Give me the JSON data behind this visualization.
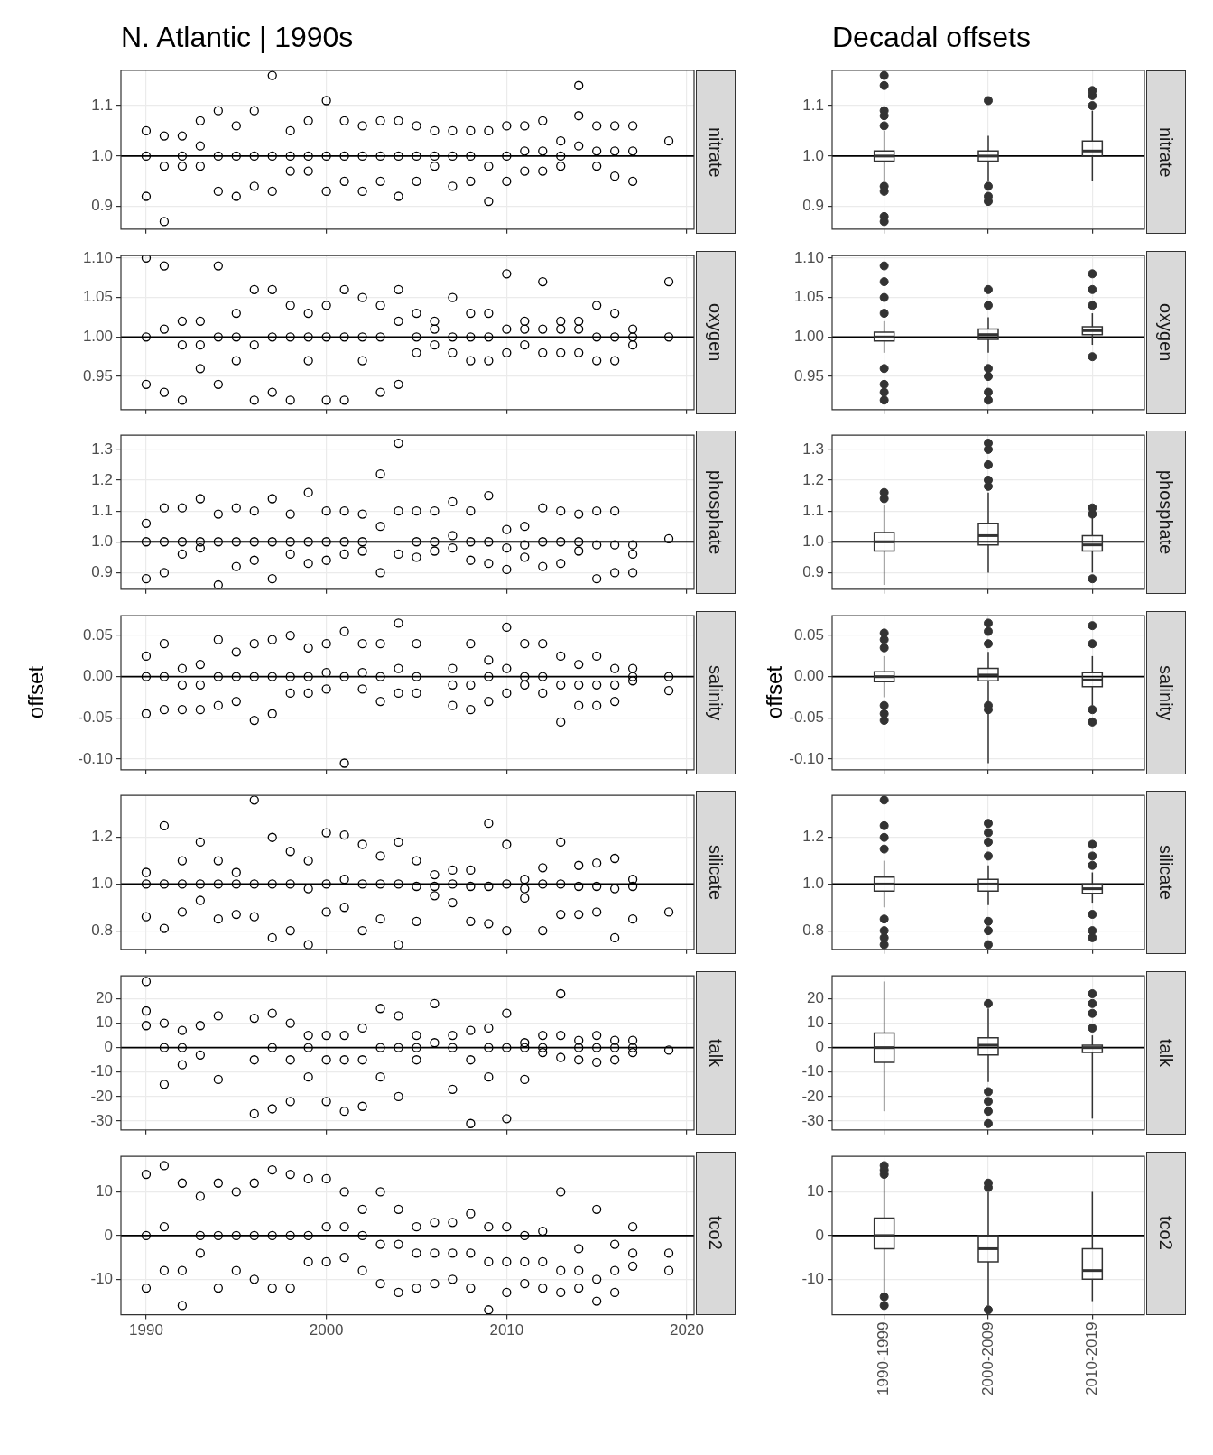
{
  "chart_data": [
    {
      "type": "scatter",
      "title": "N. Atlantic | 1990s",
      "y2label": "nitrate",
      "color": "#000000",
      "marker": "circle",
      "grid": true,
      "tick_labels": "y",
      "xlim": [
        1988.6,
        2020.4
      ],
      "xticks": [
        1990,
        2000,
        2010,
        2020
      ],
      "ylim": [
        0.855,
        1.17
      ],
      "yticks": [
        {
          "value": 0.9,
          "label": "0.9"
        },
        {
          "value": 1,
          "label": "1.0"
        },
        {
          "value": 1.1,
          "label": "1.1"
        }
      ],
      "ref_lines": [
        {
          "axis": "y",
          "value": 1
        }
      ],
      "x": [
        1990,
        1990,
        1990,
        1991,
        1991,
        1991,
        1992,
        1992,
        1992,
        1993,
        1993,
        1993,
        1994,
        1994,
        1994,
        1995,
        1995,
        1995,
        1996,
        1996,
        1996,
        1997,
        1997,
        1997,
        1998,
        1998,
        1998,
        1999,
        1999,
        1999,
        2000,
        2000,
        2000,
        2001,
        2001,
        2001,
        2002,
        2002,
        2002,
        2003,
        2003,
        2003,
        2004,
        2004,
        2004,
        2005,
        2005,
        2005,
        2006,
        2006,
        2006,
        2007,
        2007,
        2007,
        2008,
        2008,
        2008,
        2009,
        2009,
        2009,
        2010,
        2010,
        2010,
        2011,
        2011,
        2011,
        2012,
        2012,
        2012,
        2013,
        2013,
        2013,
        2014,
        2014,
        2014,
        2015,
        2015,
        2015,
        2016,
        2016,
        2016,
        2017,
        2017,
        2017,
        2019
      ],
      "values": [
        0.92,
        1.0,
        1.05,
        0.87,
        0.98,
        1.04,
        0.98,
        1.0,
        1.04,
        0.98,
        1.02,
        1.07,
        0.93,
        1.0,
        1.09,
        0.92,
        1.0,
        1.06,
        0.94,
        1.0,
        1.09,
        0.93,
        1.0,
        1.16,
        0.97,
        1.0,
        1.05,
        0.97,
        1.0,
        1.07,
        0.93,
        1.0,
        1.11,
        0.95,
        1.0,
        1.07,
        0.93,
        1.0,
        1.06,
        0.95,
        1.0,
        1.07,
        0.92,
        1.0,
        1.07,
        0.95,
        1.0,
        1.06,
        0.98,
        1.0,
        1.05,
        0.94,
        1.0,
        1.05,
        0.95,
        1.0,
        1.05,
        0.91,
        0.98,
        1.05,
        0.95,
        1.0,
        1.06,
        0.97,
        1.01,
        1.06,
        0.97,
        1.01,
        1.07,
        0.98,
        1.0,
        1.03,
        1.02,
        1.08,
        1.14,
        0.98,
        1.01,
        1.06,
        0.96,
        1.01,
        1.06,
        0.95,
        1.01,
        1.06,
        1.03
      ]
    },
    {
      "type": "box",
      "title": "Decadal offsets",
      "y2label": "nitrate",
      "color": "#333333",
      "grid": true,
      "tick_labels": "y",
      "ylim": [
        0.855,
        1.17
      ],
      "yticks": [
        {
          "value": 0.9,
          "label": "0.9"
        },
        {
          "value": 1,
          "label": "1.0"
        },
        {
          "value": 1.1,
          "label": "1.1"
        }
      ],
      "ref_lines": [
        {
          "axis": "y",
          "value": 1
        }
      ],
      "boxes": [
        {
          "low": 0.95,
          "q1": 0.99,
          "median": 1.0,
          "q3": 1.01,
          "high": 1.05,
          "outliers": [
            0.87,
            0.88,
            0.93,
            0.94,
            1.06,
            1.08,
            1.09,
            1.14,
            1.16
          ]
        },
        {
          "low": 0.95,
          "q1": 0.99,
          "median": 1.0,
          "q3": 1.01,
          "high": 1.04,
          "outliers": [
            0.91,
            0.92,
            0.94,
            1.11
          ]
        },
        {
          "low": 0.95,
          "q1": 1.0,
          "median": 1.01,
          "q3": 1.03,
          "high": 1.09,
          "outliers": [
            1.1,
            1.12,
            1.13
          ]
        }
      ]
    },
    {
      "type": "scatter",
      "y2label": "oxygen",
      "color": "#000000",
      "marker": "circle",
      "grid": true,
      "tick_labels": "y",
      "xlim": [
        1988.6,
        2020.4
      ],
      "xticks": [
        1990,
        2000,
        2010,
        2020
      ],
      "ylim": [
        0.908,
        1.103
      ],
      "yticks": [
        0.95,
        {
          "value": 1,
          "label": "1.00"
        },
        1.05,
        {
          "value": 1.1,
          "label": "1.10"
        }
      ],
      "ref_lines": [
        {
          "axis": "y",
          "value": 1
        }
      ],
      "x": [
        1990,
        1990,
        1990,
        1991,
        1991,
        1991,
        1992,
        1992,
        1992,
        1993,
        1993,
        1993,
        1994,
        1994,
        1994,
        1995,
        1995,
        1995,
        1996,
        1996,
        1996,
        1997,
        1997,
        1997,
        1998,
        1998,
        1998,
        1999,
        1999,
        1999,
        2000,
        2000,
        2000,
        2001,
        2001,
        2001,
        2002,
        2002,
        2002,
        2003,
        2003,
        2003,
        2004,
        2004,
        2004,
        2005,
        2005,
        2005,
        2006,
        2006,
        2006,
        2007,
        2007,
        2007,
        2008,
        2008,
        2008,
        2009,
        2009,
        2009,
        2010,
        2010,
        2010,
        2011,
        2011,
        2011,
        2012,
        2012,
        2012,
        2013,
        2013,
        2013,
        2014,
        2014,
        2014,
        2015,
        2015,
        2015,
        2016,
        2016,
        2016,
        2017,
        2017,
        2017,
        2019,
        2019
      ],
      "values": [
        0.94,
        1.0,
        1.1,
        0.93,
        1.01,
        1.09,
        0.92,
        0.99,
        1.02,
        0.96,
        0.99,
        1.02,
        0.94,
        1.0,
        1.09,
        0.97,
        1.0,
        1.03,
        0.92,
        0.99,
        1.06,
        0.93,
        1.0,
        1.06,
        0.92,
        1.0,
        1.04,
        0.97,
        1.0,
        1.03,
        0.92,
        1.0,
        1.04,
        0.92,
        1.0,
        1.06,
        0.97,
        1.0,
        1.05,
        0.93,
        1.0,
        1.04,
        0.94,
        1.02,
        1.06,
        0.98,
        1.0,
        1.03,
        0.99,
        1.01,
        1.02,
        0.98,
        1.0,
        1.05,
        0.97,
        1.0,
        1.03,
        0.97,
        1.0,
        1.03,
        0.98,
        1.01,
        1.08,
        0.99,
        1.01,
        1.02,
        0.98,
        1.01,
        1.07,
        0.98,
        1.01,
        1.02,
        0.98,
        1.01,
        1.02,
        0.97,
        1.0,
        1.04,
        0.97,
        1.0,
        1.03,
        0.99,
        1.0,
        1.01,
        1.0,
        1.07
      ]
    },
    {
      "type": "box",
      "y2label": "oxygen",
      "color": "#333333",
      "grid": true,
      "tick_labels": "y",
      "ylim": [
        0.908,
        1.103
      ],
      "yticks": [
        0.95,
        {
          "value": 1,
          "label": "1.00"
        },
        1.05,
        {
          "value": 1.1,
          "label": "1.10"
        }
      ],
      "ref_lines": [
        {
          "axis": "y",
          "value": 1
        }
      ],
      "boxes": [
        {
          "low": 0.98,
          "q1": 0.995,
          "median": 1.0,
          "q3": 1.006,
          "high": 1.02,
          "outliers": [
            0.92,
            0.93,
            0.94,
            0.96,
            1.03,
            1.05,
            1.07,
            1.09
          ]
        },
        {
          "low": 0.98,
          "q1": 0.997,
          "median": 1.003,
          "q3": 1.01,
          "high": 1.025,
          "outliers": [
            0.92,
            0.93,
            0.95,
            0.96,
            1.04,
            1.06
          ]
        },
        {
          "low": 0.99,
          "q1": 1.003,
          "median": 1.008,
          "q3": 1.013,
          "high": 1.03,
          "outliers": [
            0.975,
            1.04,
            1.06,
            1.08
          ]
        }
      ]
    },
    {
      "type": "scatter",
      "y2label": "phosphate",
      "color": "#000000",
      "marker": "circle",
      "grid": true,
      "tick_labels": "y",
      "xlim": [
        1988.6,
        2020.4
      ],
      "xticks": [
        1990,
        2000,
        2010,
        2020
      ],
      "ylim": [
        0.846,
        1.346
      ],
      "yticks": [
        0.9,
        {
          "value": 1,
          "label": "1.0"
        },
        1.1,
        1.2,
        1.3
      ],
      "ref_lines": [
        {
          "axis": "y",
          "value": 1
        }
      ],
      "x": [
        1990,
        1990,
        1990,
        1991,
        1991,
        1991,
        1992,
        1992,
        1992,
        1993,
        1993,
        1993,
        1994,
        1994,
        1994,
        1995,
        1995,
        1995,
        1996,
        1996,
        1996,
        1997,
        1997,
        1997,
        1998,
        1998,
        1998,
        1999,
        1999,
        1999,
        2000,
        2000,
        2000,
        2001,
        2001,
        2001,
        2002,
        2002,
        2002,
        2003,
        2003,
        2003,
        2004,
        2004,
        2004,
        2005,
        2005,
        2005,
        2006,
        2006,
        2006,
        2007,
        2007,
        2007,
        2008,
        2008,
        2008,
        2009,
        2009,
        2009,
        2010,
        2010,
        2010,
        2011,
        2011,
        2011,
        2012,
        2012,
        2012,
        2013,
        2013,
        2013,
        2014,
        2014,
        2014,
        2015,
        2015,
        2015,
        2016,
        2016,
        2016,
        2017,
        2017,
        2017,
        2019
      ],
      "values": [
        0.88,
        1.0,
        1.06,
        0.9,
        1.0,
        1.11,
        0.96,
        1.0,
        1.11,
        0.98,
        1.0,
        1.14,
        0.86,
        1.0,
        1.09,
        0.92,
        1.0,
        1.11,
        0.94,
        1.0,
        1.1,
        0.88,
        1.0,
        1.14,
        0.96,
        1.0,
        1.09,
        0.93,
        1.0,
        1.16,
        0.94,
        1.0,
        1.1,
        0.96,
        1.0,
        1.1,
        0.97,
        1.0,
        1.09,
        0.9,
        1.05,
        1.22,
        0.96,
        1.1,
        1.32,
        0.95,
        1.0,
        1.1,
        0.97,
        1.0,
        1.1,
        0.98,
        1.02,
        1.13,
        0.94,
        1.0,
        1.1,
        0.93,
        1.0,
        1.15,
        0.91,
        0.98,
        1.04,
        0.95,
        0.99,
        1.05,
        0.92,
        1.0,
        1.11,
        0.93,
        1.0,
        1.1,
        0.97,
        1.0,
        1.09,
        0.88,
        0.99,
        1.1,
        0.9,
        0.99,
        1.1,
        0.9,
        0.96,
        0.99,
        1.01
      ]
    },
    {
      "type": "box",
      "y2label": "phosphate",
      "color": "#333333",
      "grid": true,
      "tick_labels": "y",
      "ylim": [
        0.846,
        1.346
      ],
      "yticks": [
        0.9,
        {
          "value": 1,
          "label": "1.0"
        },
        1.1,
        1.2,
        1.3
      ],
      "ref_lines": [
        {
          "axis": "y",
          "value": 1
        }
      ],
      "boxes": [
        {
          "low": 0.86,
          "q1": 0.97,
          "median": 1.0,
          "q3": 1.03,
          "high": 1.12,
          "outliers": [
            1.14,
            1.16
          ]
        },
        {
          "low": 0.9,
          "q1": 0.99,
          "median": 1.02,
          "q3": 1.06,
          "high": 1.16,
          "outliers": [
            1.18,
            1.2,
            1.25,
            1.3,
            1.32
          ]
        },
        {
          "low": 0.9,
          "q1": 0.97,
          "median": 0.99,
          "q3": 1.02,
          "high": 1.08,
          "outliers": [
            0.88,
            1.09,
            1.11
          ]
        }
      ]
    },
    {
      "type": "scatter",
      "y2label": "salinity",
      "ylabel": "offset",
      "color": "#000000",
      "marker": "circle",
      "grid": true,
      "tick_labels": "y",
      "xlim": [
        1988.6,
        2020.4
      ],
      "xticks": [
        1990,
        2000,
        2010,
        2020
      ],
      "ylim": [
        -0.113,
        0.074
      ],
      "yticks": [
        {
          "value": -0.1,
          "label": "-0.10"
        },
        -0.05,
        {
          "value": 0,
          "label": "0.00"
        },
        0.05
      ],
      "ref_lines": [
        {
          "axis": "y",
          "value": 0
        }
      ],
      "x": [
        1990,
        1990,
        1990,
        1991,
        1991,
        1991,
        1992,
        1992,
        1992,
        1993,
        1993,
        1993,
        1994,
        1994,
        1994,
        1995,
        1995,
        1995,
        1996,
        1996,
        1996,
        1997,
        1997,
        1997,
        1998,
        1998,
        1998,
        1999,
        1999,
        1999,
        2000,
        2000,
        2000,
        2001,
        2001,
        2001,
        2002,
        2002,
        2002,
        2003,
        2003,
        2003,
        2004,
        2004,
        2004,
        2005,
        2005,
        2005,
        2007,
        2007,
        2007,
        2008,
        2008,
        2008,
        2009,
        2009,
        2009,
        2010,
        2010,
        2010,
        2011,
        2011,
        2011,
        2012,
        2012,
        2012,
        2013,
        2013,
        2013,
        2014,
        2014,
        2014,
        2015,
        2015,
        2015,
        2016,
        2016,
        2016,
        2017,
        2017,
        2017,
        2019,
        2019
      ],
      "values": [
        -0.045,
        0,
        0.025,
        -0.04,
        0,
        0.04,
        -0.04,
        -0.01,
        0.01,
        -0.04,
        -0.01,
        0.015,
        -0.035,
        0,
        0.045,
        -0.03,
        0,
        0.03,
        -0.053,
        0,
        0.04,
        -0.045,
        0,
        0.045,
        -0.02,
        0,
        0.05,
        -0.02,
        0,
        0.035,
        -0.015,
        0.005,
        0.04,
        -0.105,
        0,
        0.055,
        -0.015,
        0.005,
        0.04,
        -0.03,
        0,
        0.04,
        -0.02,
        0.01,
        0.065,
        -0.02,
        0,
        0.04,
        -0.035,
        -0.01,
        0.01,
        -0.04,
        -0.01,
        0.04,
        -0.03,
        0,
        0.02,
        -0.02,
        0.01,
        0.06,
        -0.01,
        0,
        0.04,
        -0.02,
        0,
        0.04,
        -0.055,
        -0.01,
        0.025,
        -0.035,
        -0.01,
        0.015,
        -0.035,
        -0.01,
        0.025,
        -0.03,
        -0.01,
        0.01,
        -0.005,
        0,
        0.01,
        -0.017,
        0
      ]
    },
    {
      "type": "box",
      "y2label": "salinity",
      "ylabel": "offset",
      "color": "#333333",
      "grid": true,
      "tick_labels": "y",
      "ylim": [
        -0.113,
        0.074
      ],
      "yticks": [
        {
          "value": -0.1,
          "label": "-0.10"
        },
        -0.05,
        {
          "value": 0,
          "label": "0.00"
        },
        0.05
      ],
      "ref_lines": [
        {
          "axis": "y",
          "value": 0
        }
      ],
      "boxes": [
        {
          "low": -0.025,
          "q1": -0.006,
          "median": 0,
          "q3": 0.006,
          "high": 0.025,
          "outliers": [
            -0.053,
            -0.045,
            -0.035,
            0.035,
            0.045,
            0.053
          ]
        },
        {
          "low": -0.105,
          "q1": -0.005,
          "median": 0.002,
          "q3": 0.01,
          "high": 0.03,
          "outliers": [
            -0.04,
            -0.035,
            0.04,
            0.055,
            0.065
          ]
        },
        {
          "low": -0.035,
          "q1": -0.012,
          "median": -0.004,
          "q3": 0.005,
          "high": 0.025,
          "outliers": [
            -0.055,
            -0.04,
            0.04,
            0.062
          ]
        }
      ]
    },
    {
      "type": "scatter",
      "y2label": "silicate",
      "color": "#000000",
      "marker": "circle",
      "grid": true,
      "tick_labels": "y",
      "xlim": [
        1988.6,
        2020.4
      ],
      "xticks": [
        1990,
        2000,
        2010,
        2020
      ],
      "ylim": [
        0.72,
        1.38
      ],
      "yticks": [
        0.8,
        {
          "value": 1,
          "label": "1.0"
        },
        1.2
      ],
      "ref_lines": [
        {
          "axis": "y",
          "value": 1
        }
      ],
      "x": [
        1990,
        1990,
        1990,
        1991,
        1991,
        1991,
        1992,
        1992,
        1992,
        1993,
        1993,
        1993,
        1994,
        1994,
        1994,
        1995,
        1995,
        1995,
        1996,
        1996,
        1996,
        1997,
        1997,
        1997,
        1998,
        1998,
        1998,
        1999,
        1999,
        1999,
        2000,
        2000,
        2000,
        2001,
        2001,
        2001,
        2002,
        2002,
        2002,
        2003,
        2003,
        2003,
        2004,
        2004,
        2004,
        2005,
        2005,
        2005,
        2006,
        2006,
        2006,
        2007,
        2007,
        2007,
        2008,
        2008,
        2008,
        2009,
        2009,
        2009,
        2010,
        2010,
        2010,
        2011,
        2011,
        2011,
        2012,
        2012,
        2012,
        2013,
        2013,
        2013,
        2014,
        2014,
        2014,
        2015,
        2015,
        2015,
        2016,
        2016,
        2016,
        2017,
        2017,
        2017,
        2019
      ],
      "values": [
        0.86,
        1.0,
        1.05,
        0.81,
        1.0,
        1.25,
        0.88,
        1.0,
        1.1,
        0.93,
        1.0,
        1.18,
        0.85,
        1.0,
        1.1,
        0.87,
        1.0,
        1.05,
        0.86,
        1.0,
        1.36,
        0.77,
        1.0,
        1.2,
        0.8,
        1.0,
        1.14,
        0.74,
        0.98,
        1.1,
        0.88,
        1.0,
        1.22,
        0.9,
        1.02,
        1.21,
        0.8,
        1.0,
        1.17,
        0.85,
        1.0,
        1.12,
        0.74,
        1.0,
        1.18,
        0.84,
        0.99,
        1.1,
        0.95,
        0.99,
        1.04,
        0.92,
        1.0,
        1.06,
        0.84,
        0.99,
        1.06,
        0.83,
        0.99,
        1.26,
        0.8,
        1.0,
        1.17,
        0.94,
        0.98,
        1.02,
        0.8,
        1.0,
        1.07,
        0.87,
        1.0,
        1.18,
        0.87,
        0.99,
        1.08,
        0.88,
        0.99,
        1.09,
        0.77,
        0.98,
        1.11,
        0.85,
        0.99,
        1.02,
        0.88
      ]
    },
    {
      "type": "box",
      "y2label": "silicate",
      "color": "#333333",
      "grid": true,
      "tick_labels": "y",
      "ylim": [
        0.72,
        1.38
      ],
      "yticks": [
        0.8,
        {
          "value": 1,
          "label": "1.0"
        },
        1.2
      ],
      "ref_lines": [
        {
          "axis": "y",
          "value": 1
        }
      ],
      "boxes": [
        {
          "low": 0.9,
          "q1": 0.97,
          "median": 1.0,
          "q3": 1.03,
          "high": 1.1,
          "outliers": [
            0.74,
            0.77,
            0.8,
            0.85,
            1.15,
            1.2,
            1.25,
            1.36
          ]
        },
        {
          "low": 0.91,
          "q1": 0.97,
          "median": 1.0,
          "q3": 1.02,
          "high": 1.08,
          "outliers": [
            0.74,
            0.8,
            0.84,
            1.12,
            1.18,
            1.22,
            1.26
          ]
        },
        {
          "low": 0.92,
          "q1": 0.96,
          "median": 0.98,
          "q3": 1.0,
          "high": 1.05,
          "outliers": [
            0.77,
            0.8,
            0.87,
            1.08,
            1.12,
            1.17
          ]
        }
      ]
    },
    {
      "type": "scatter",
      "y2label": "talk",
      "color": "#000000",
      "marker": "circle",
      "grid": true,
      "tick_labels": "y",
      "xlim": [
        1988.6,
        2020.4
      ],
      "xticks": [
        1990,
        2000,
        2010,
        2020
      ],
      "ylim": [
        -33.6,
        29.3
      ],
      "yticks": [
        -30,
        -20,
        -10,
        0,
        10,
        20
      ],
      "ref_lines": [
        {
          "axis": "y",
          "value": 0
        }
      ],
      "x": [
        1990,
        1990,
        1990,
        1991,
        1991,
        1991,
        1992,
        1992,
        1992,
        1993,
        1993,
        1994,
        1994,
        1996,
        1996,
        1996,
        1997,
        1997,
        1997,
        1998,
        1998,
        1998,
        1999,
        1999,
        1999,
        2000,
        2000,
        2000,
        2001,
        2001,
        2001,
        2002,
        2002,
        2002,
        2003,
        2003,
        2003,
        2004,
        2004,
        2004,
        2005,
        2005,
        2005,
        2006,
        2006,
        2007,
        2007,
        2007,
        2008,
        2008,
        2008,
        2009,
        2009,
        2009,
        2010,
        2010,
        2010,
        2011,
        2011,
        2011,
        2012,
        2012,
        2012,
        2013,
        2013,
        2013,
        2014,
        2014,
        2014,
        2015,
        2015,
        2015,
        2016,
        2016,
        2016,
        2017,
        2017,
        2017,
        2019
      ],
      "values": [
        9,
        15,
        27,
        -15,
        0,
        10,
        -7,
        0,
        7,
        -3,
        9,
        -13,
        13,
        -27,
        -5,
        12,
        -25,
        0,
        14,
        -22,
        -5,
        10,
        -12,
        0,
        5,
        -22,
        -5,
        5,
        -26,
        -5,
        5,
        -24,
        -5,
        8,
        -12,
        0,
        16,
        -20,
        0,
        13,
        -5,
        0,
        5,
        2,
        18,
        -17,
        0,
        5,
        -31,
        -5,
        7,
        -12,
        0,
        8,
        -29,
        0,
        14,
        -13,
        0,
        2,
        -2,
        0,
        5,
        -4,
        5,
        22,
        -5,
        0,
        3,
        -6,
        0,
        5,
        -5,
        0,
        3,
        -2,
        0,
        3,
        -1
      ]
    },
    {
      "type": "box",
      "y2label": "talk",
      "color": "#333333",
      "grid": true,
      "tick_labels": "y",
      "ylim": [
        -33.6,
        29.3
      ],
      "yticks": [
        -30,
        -20,
        -10,
        0,
        10,
        20
      ],
      "ref_lines": [
        {
          "axis": "y",
          "value": 0
        }
      ],
      "boxes": [
        {
          "low": -26,
          "q1": -6,
          "median": 0,
          "q3": 6,
          "high": 27
        },
        {
          "low": -14,
          "q1": -3,
          "median": 1,
          "q3": 4,
          "high": 16,
          "outliers": [
            -31,
            -26,
            -22,
            -18,
            18
          ]
        },
        {
          "low": -29,
          "q1": -2,
          "median": 0,
          "q3": 1,
          "high": 5,
          "outliers": [
            8,
            14,
            18,
            22
          ]
        }
      ]
    },
    {
      "type": "scatter",
      "y2label": "tco2",
      "color": "#000000",
      "marker": "circle",
      "grid": true,
      "xlim": [
        1988.6,
        2020.4
      ],
      "xticks": [
        1990,
        2000,
        2010,
        2020
      ],
      "ylim": [
        -18.1,
        18.1
      ],
      "yticks": [
        -10,
        0,
        10
      ],
      "ref_lines": [
        {
          "axis": "y",
          "value": 0
        }
      ],
      "x": [
        1990,
        1990,
        1990,
        1991,
        1991,
        1991,
        1992,
        1992,
        1992,
        1993,
        1993,
        1993,
        1994,
        1994,
        1994,
        1995,
        1995,
        1995,
        1996,
        1996,
        1996,
        1997,
        1997,
        1997,
        1998,
        1998,
        1998,
        1999,
        1999,
        1999,
        2000,
        2000,
        2000,
        2001,
        2001,
        2001,
        2002,
        2002,
        2002,
        2003,
        2003,
        2003,
        2004,
        2004,
        2004,
        2005,
        2005,
        2005,
        2006,
        2006,
        2006,
        2007,
        2007,
        2007,
        2008,
        2008,
        2008,
        2009,
        2009,
        2009,
        2010,
        2010,
        2010,
        2011,
        2011,
        2011,
        2012,
        2012,
        2012,
        2013,
        2013,
        2013,
        2014,
        2014,
        2014,
        2015,
        2015,
        2015,
        2016,
        2016,
        2016,
        2017,
        2017,
        2017,
        2019,
        2019
      ],
      "values": [
        -12,
        0,
        14,
        -8,
        2,
        16,
        -16,
        -8,
        12,
        -4,
        0,
        9,
        -12,
        0,
        12,
        -8,
        0,
        10,
        -10,
        0,
        12,
        -12,
        0,
        15,
        -12,
        0,
        14,
        -6,
        0,
        13,
        -6,
        2,
        13,
        -5,
        2,
        10,
        -8,
        0,
        6,
        -11,
        -2,
        10,
        -13,
        -2,
        6,
        -12,
        -4,
        2,
        -11,
        -4,
        3,
        -10,
        -4,
        3,
        -12,
        -4,
        5,
        -17,
        -6,
        2,
        -13,
        -6,
        2,
        -11,
        -6,
        0,
        -12,
        -6,
        1,
        -13,
        -8,
        10,
        -12,
        -8,
        -3,
        -15,
        -10,
        6,
        -13,
        -8,
        -2,
        -7,
        -4,
        2,
        -8,
        -4
      ]
    },
    {
      "type": "box",
      "y2label": "tco2",
      "color": "#333333",
      "grid": true,
      "categories": [
        "1990-1999",
        "2000-2009",
        "2010-2019"
      ],
      "ylim": [
        -18.1,
        18.1
      ],
      "yticks": [
        -10,
        0,
        10
      ],
      "ref_lines": [
        {
          "axis": "y",
          "value": 0
        }
      ],
      "boxes": [
        {
          "low": -13,
          "q1": -3,
          "median": 0,
          "q3": 4,
          "high": 13,
          "outliers": [
            -16,
            -14,
            14,
            15,
            16
          ]
        },
        {
          "low": -16,
          "q1": -6,
          "median": -3,
          "q3": 0,
          "high": 10,
          "outliers": [
            -17,
            11,
            12
          ]
        },
        {
          "low": -15,
          "q1": -10,
          "median": -8,
          "q3": -3,
          "high": 10
        }
      ]
    }
  ]
}
